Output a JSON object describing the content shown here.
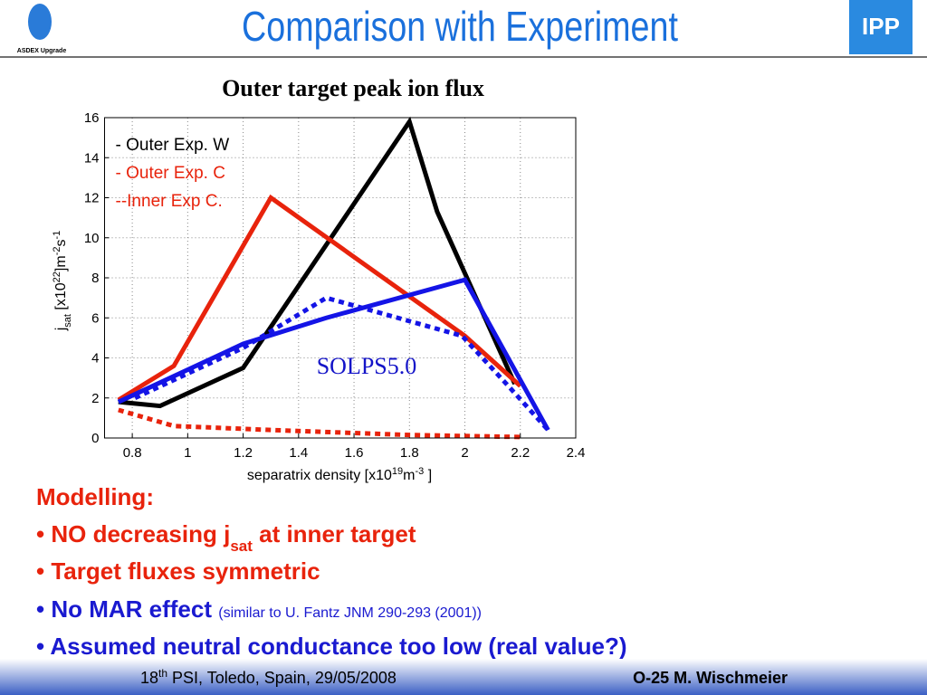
{
  "header": {
    "title": "Comparison with Experiment",
    "logo_text": "ASDEX Upgrade",
    "institute": "IPP"
  },
  "chart_data": {
    "type": "line",
    "title": "Outer target peak ion flux",
    "xlabel": [
      "separatrix density [x10",
      "19",
      "m",
      "-3",
      " ]"
    ],
    "ylabel": [
      "j",
      "sat",
      " [x10",
      "22",
      "]m",
      "-2",
      "s",
      "-1"
    ],
    "xlim": [
      0.7,
      2.4
    ],
    "xticks": [
      0.8,
      1,
      1.2,
      1.4,
      1.6,
      1.8,
      2,
      2.2,
      2.4
    ],
    "ylim": [
      0,
      16
    ],
    "yticks": [
      0,
      2,
      4,
      6,
      8,
      10,
      12,
      14,
      16
    ],
    "grid": true,
    "legend": "upper left",
    "annotation": "SOLPS5.0",
    "series": [
      {
        "name": "- Outer Exp. W",
        "color": "#000000",
        "style": "solid",
        "x": [
          0.75,
          0.9,
          1.2,
          1.8,
          1.9,
          2.18
        ],
        "values": [
          1.8,
          1.6,
          3.5,
          15.8,
          11.3,
          2.7
        ]
      },
      {
        "name": "- Outer Exp. C",
        "color": "#e8230c",
        "style": "solid",
        "x": [
          0.75,
          0.95,
          1.3,
          2.0,
          2.2
        ],
        "values": [
          1.9,
          3.6,
          12.0,
          5.1,
          2.6
        ]
      },
      {
        "color": "#1414e6",
        "style": "solid",
        "x": [
          0.75,
          1.2,
          1.5,
          2.0,
          2.3
        ],
        "values": [
          1.8,
          4.7,
          6.0,
          7.9,
          0.4
        ]
      },
      {
        "color": "#1414e6",
        "style": "dotted",
        "x": [
          0.81,
          1.2,
          1.5,
          1.99,
          2.15,
          2.3
        ],
        "values": [
          2.0,
          4.5,
          7.0,
          5.1,
          2.7,
          0.4
        ]
      },
      {
        "name": "--Inner Exp C.",
        "color": "#e8230c",
        "style": "dotted",
        "x": [
          0.75,
          0.95,
          1.3,
          1.8,
          2.2
        ],
        "values": [
          1.4,
          0.6,
          0.4,
          0.15,
          0.05
        ]
      }
    ]
  },
  "notes": {
    "heading": "Modelling:",
    "bullet": "•",
    "item1": [
      "NO decreasing j",
      "sat",
      " at inner target"
    ],
    "item2": "Target fluxes symmetric",
    "item3": [
      "No MAR effect",
      "(similar to U. Fantz JNM 290-293 (2001))"
    ],
    "item4": "Assumed neutral conductance too low (real value?)"
  },
  "footer": {
    "event": [
      "18",
      "th",
      " PSI, Toledo, Spain, 29/05/2008"
    ],
    "talk": "O-25 M. Wischmeier"
  }
}
